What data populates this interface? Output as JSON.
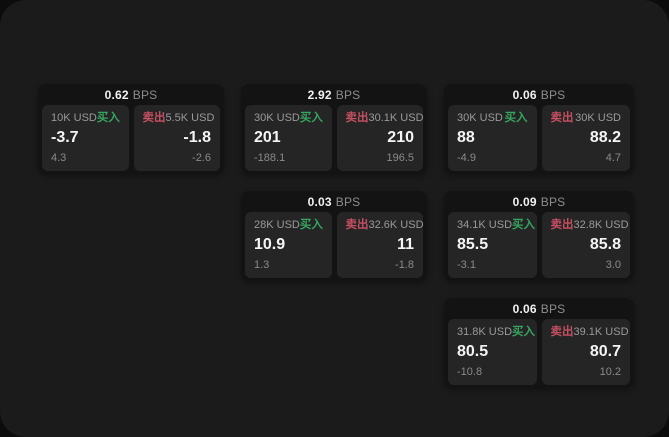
{
  "labels": {
    "bps_unit": "BPS",
    "buy": "买入",
    "sell": "卖出"
  },
  "colors": {
    "window_background": "#1b1b1b",
    "outer_background": "#0c0c0c",
    "card_background": "#131313",
    "pane_background": "#252525",
    "buy_green": "#35a55f",
    "sell_red": "#c44f62",
    "primary_text": "#f5f5f5",
    "secondary_text": "#8d8d8d"
  },
  "cards": [
    {
      "bps": "0.62",
      "buy": {
        "amount": "10K USD",
        "value": "-3.7",
        "delta": "4.3"
      },
      "sell": {
        "amount": "5.5K USD",
        "value": "-1.8",
        "delta": "-2.6"
      }
    },
    {
      "bps": "2.92",
      "buy": {
        "amount": "30K USD",
        "value": "201",
        "delta": "-188.1"
      },
      "sell": {
        "amount": "30.1K USD",
        "value": "210",
        "delta": "196.5"
      }
    },
    {
      "bps": "0.06",
      "buy": {
        "amount": "30K USD",
        "value": "88",
        "delta": "-4.9"
      },
      "sell": {
        "amount": "30K USD",
        "value": "88.2",
        "delta": "4.7"
      }
    },
    {
      "bps": "0.03",
      "buy": {
        "amount": "28K USD",
        "value": "10.9",
        "delta": "1.3"
      },
      "sell": {
        "amount": "32.6K USD",
        "value": "11",
        "delta": "-1.8"
      }
    },
    {
      "bps": "0.09",
      "buy": {
        "amount": "34.1K USD",
        "value": "85.5",
        "delta": "-3.1"
      },
      "sell": {
        "amount": "32.8K USD",
        "value": "85.8",
        "delta": "3.0"
      }
    },
    {
      "bps": "0.06",
      "buy": {
        "amount": "31.8K USD",
        "value": "80.5",
        "delta": "-10.8"
      },
      "sell": {
        "amount": "39.1K USD",
        "value": "80.7",
        "delta": "10.2"
      }
    }
  ]
}
